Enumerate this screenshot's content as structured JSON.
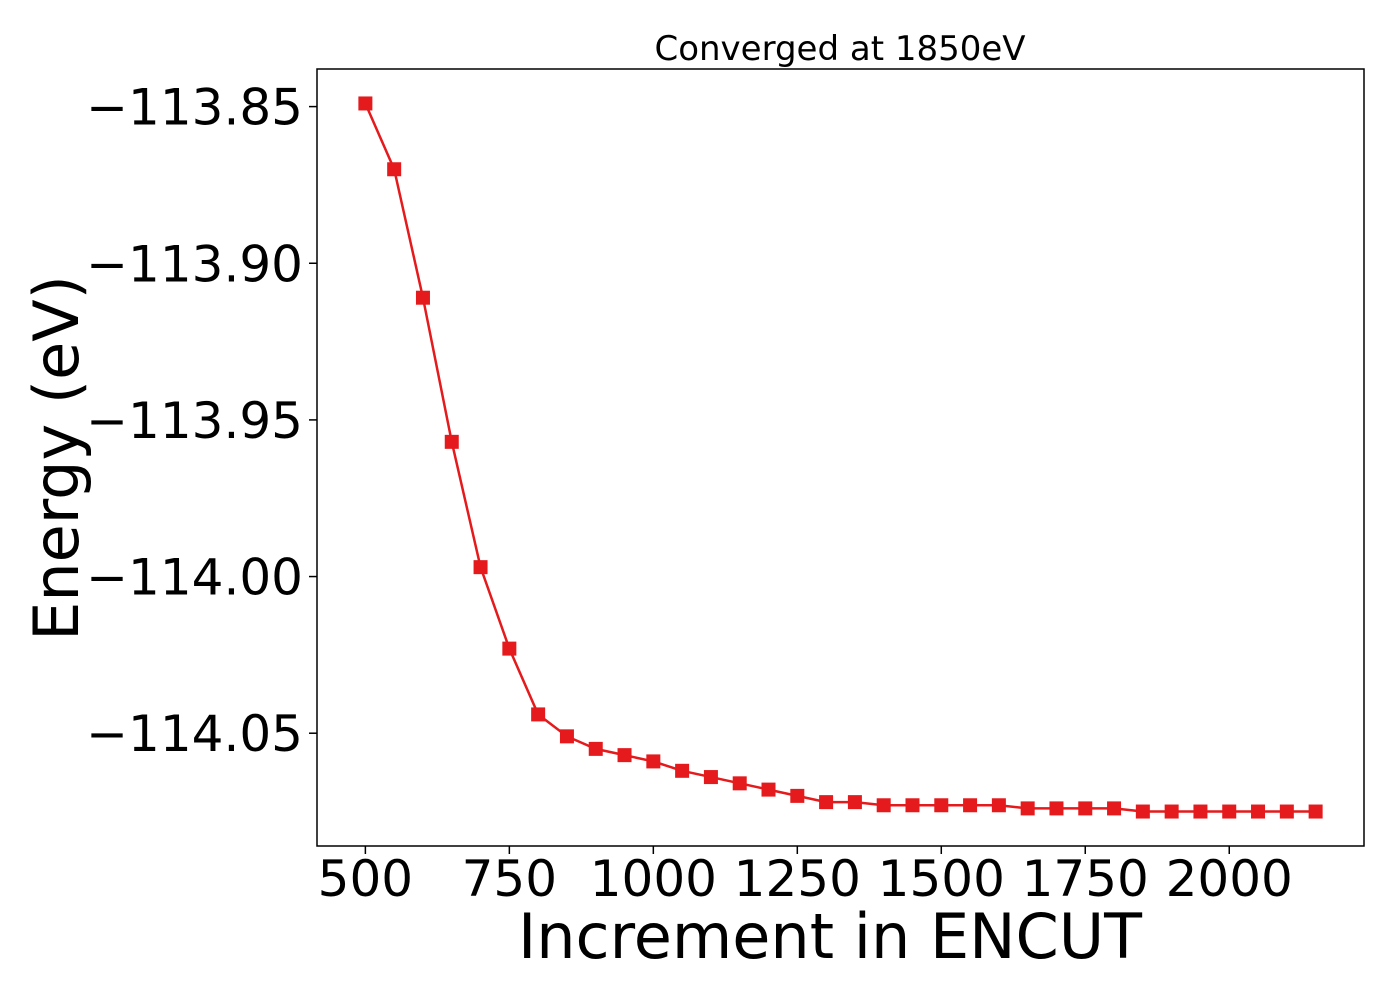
{
  "chart_data": {
    "type": "line",
    "title": "Converged at 1850eV",
    "xlabel": "Increment in ENCUT",
    "ylabel": "Energy (eV)",
    "xlim": [
      416,
      2234
    ],
    "ylim": [
      -114.086,
      -113.838
    ],
    "xticks": [
      500,
      750,
      1000,
      1250,
      1500,
      1750,
      2000
    ],
    "xtick_labels": [
      "500",
      "750",
      "1000",
      "1250",
      "1500",
      "1750",
      "2000"
    ],
    "yticks": [
      -113.85,
      -113.9,
      -113.95,
      -114.0,
      -114.05
    ],
    "ytick_labels": [
      "−113.85",
      "−113.90",
      "−113.95",
      "−114.00",
      "−114.05"
    ],
    "grid": false,
    "line_color": "#e41a1c",
    "marker": "square",
    "series": [
      {
        "x": [
          500,
          550,
          600,
          650,
          700,
          750,
          800,
          850,
          900,
          950,
          1000,
          1050,
          1100,
          1150,
          1200,
          1250,
          1300,
          1350,
          1400,
          1450,
          1500,
          1550,
          1600,
          1650,
          1700,
          1750,
          1800,
          1850,
          1900,
          1950,
          2000,
          2050,
          2100,
          2150
        ],
        "y": [
          -113.849,
          -113.87,
          -113.911,
          -113.957,
          -113.997,
          -114.023,
          -114.044,
          -114.051,
          -114.055,
          -114.057,
          -114.059,
          -114.062,
          -114.064,
          -114.066,
          -114.068,
          -114.07,
          -114.072,
          -114.072,
          -114.073,
          -114.073,
          -114.073,
          -114.073,
          -114.073,
          -114.074,
          -114.074,
          -114.074,
          -114.074,
          -114.075,
          -114.075,
          -114.075,
          -114.075,
          -114.075,
          -114.075,
          -114.075
        ]
      }
    ]
  }
}
